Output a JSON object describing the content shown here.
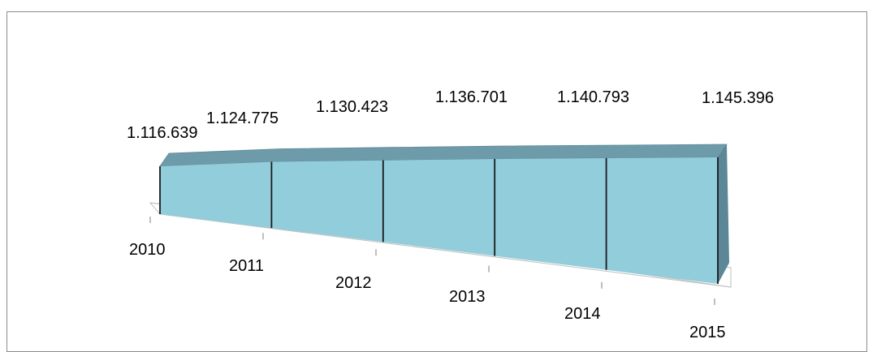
{
  "chart_data": {
    "type": "area",
    "categories": [
      "2010",
      "2011",
      "2012",
      "2013",
      "2014",
      "2015"
    ],
    "values": [
      1116639,
      1124775,
      1130423,
      1136701,
      1140793,
      1145396
    ],
    "value_labels": [
      "1.116.639",
      "1.124.775",
      "1.130.423",
      "1.136.701",
      "1.140.793",
      "1.145.396"
    ],
    "title": "",
    "xlabel": "",
    "ylabel": "",
    "grid": false,
    "legend": "none",
    "colors": {
      "area_front": "#92CDDC",
      "area_top": "#6E9BAA",
      "area_side": "#5B8796",
      "edge": "#1a1a1a",
      "floor": "#ffffff",
      "floor_edge": "#bfbfbf"
    }
  }
}
